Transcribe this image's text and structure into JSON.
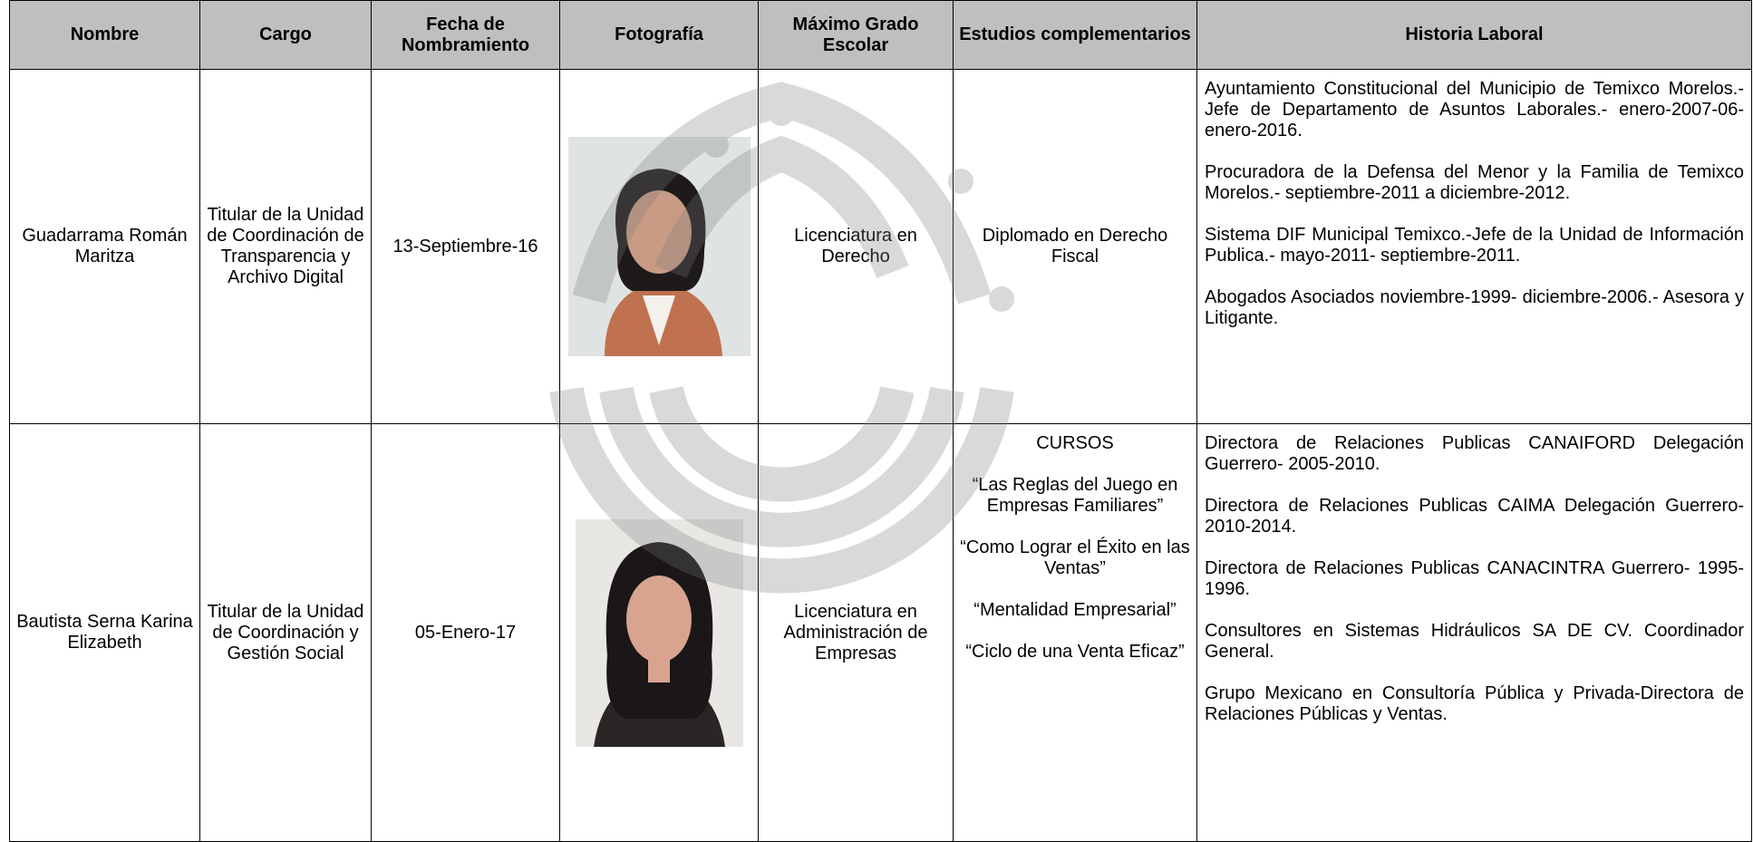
{
  "table": {
    "headers": [
      "Nombre",
      "Cargo",
      "Fecha de Nombramiento",
      "Fotografía",
      "Máximo Grado Escolar",
      "Estudios complementarios",
      "Historia Laboral"
    ],
    "rows": [
      {
        "nombre": "Guadarrama Román Maritza",
        "cargo": "Titular de la Unidad de Coordinación de Transparencia y Archivo Digital",
        "fecha": "13-Septiembre-16",
        "grado": "Licenciatura en Derecho",
        "estudios": [
          "Diplomado en Derecho Fiscal"
        ],
        "historia": [
          "Ayuntamiento Constitucional del Municipio de Temixco Morelos.- Jefe de Departamento de Asuntos Laborales.- enero-2007-06-enero-2016.",
          "Procuradora de la Defensa del Menor y la Familia de Temixco Morelos.- septiembre-2011 a diciembre-2012.",
          "Sistema DIF Municipal Temixco.-Jefe de la Unidad de Información Publica.- mayo-2011- septiembre-2011.",
          "Abogados Asociados noviembre-1999- diciembre-2006.- Asesora y Litigante."
        ]
      },
      {
        "nombre": "Bautista Serna Karina Elizabeth",
        "cargo": "Titular de la Unidad de Coordinación y Gestión Social",
        "fecha": "05-Enero-17",
        "grado": "Licenciatura en Administración de Empresas",
        "estudios": [
          "CURSOS",
          "“Las Reglas del Juego en Empresas Familiares”",
          "“Como Lograr el Éxito en las Ventas”",
          "“Mentalidad Empresarial”",
          "“Ciclo de una Venta Eficaz”"
        ],
        "historia": [
          "Directora de Relaciones Publicas CANAIFORD Delegación Guerrero- 2005-2010.",
          "Directora de Relaciones Publicas CAIMA Delegación Guerrero- 2010-2014.",
          "Directora de Relaciones Publicas CANACINTRA Guerrero- 1995-1996.",
          "Consultores en Sistemas Hidráulicos SA DE CV. Coordinador General.",
          "Grupo Mexicano en Consultoría Pública y Privada-Directora de Relaciones Públicas y Ventas."
        ]
      }
    ]
  }
}
